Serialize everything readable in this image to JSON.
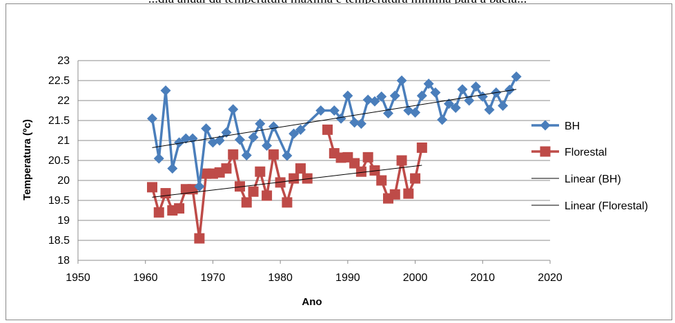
{
  "caption": "...dia anual da temperatura máxima e temperatura mínima para a bacia...",
  "chart_data": {
    "type": "line",
    "xlabel": "Ano",
    "ylabel": "Temperatura (ºc)",
    "xlim": [
      1950,
      2020
    ],
    "ylim": [
      18,
      23
    ],
    "xticks": [
      1950,
      1960,
      1970,
      1980,
      1990,
      2000,
      2010,
      2020
    ],
    "yticks": [
      18,
      18.5,
      19,
      19.5,
      20,
      20.5,
      21,
      21.5,
      22,
      22.5,
      23
    ],
    "grid": "horizontal",
    "legend_position": "right",
    "series": [
      {
        "name": "BH",
        "color": "#4a7ebb",
        "marker": "diamond",
        "x": [
          1961,
          1962,
          1963,
          1964,
          1965,
          1966,
          1967,
          1968,
          1969,
          1970,
          1971,
          1972,
          1973,
          1974,
          1975,
          1976,
          1977,
          1978,
          1979,
          1981,
          1982,
          1983,
          1986,
          1988,
          1989,
          1990,
          1991,
          1992,
          1993,
          1994,
          1995,
          1996,
          1997,
          1998,
          1999,
          2000,
          2001,
          2002,
          2003,
          2004,
          2005,
          2006,
          2007,
          2008,
          2009,
          2010,
          2011,
          2012,
          2013,
          2014,
          2015
        ],
        "y": [
          21.55,
          20.55,
          22.25,
          20.3,
          20.95,
          21.05,
          21.05,
          19.85,
          21.3,
          20.95,
          21.0,
          21.2,
          21.78,
          21.02,
          20.63,
          21.08,
          21.42,
          20.87,
          21.35,
          20.62,
          21.17,
          21.27,
          21.75,
          21.75,
          21.55,
          22.12,
          21.45,
          21.42,
          22.02,
          21.98,
          22.1,
          21.68,
          22.12,
          22.5,
          21.75,
          21.7,
          22.12,
          22.42,
          22.2,
          21.52,
          21.92,
          21.82,
          22.28,
          22.0,
          22.35,
          22.1,
          21.77,
          22.2,
          21.87,
          22.27,
          22.6
        ]
      },
      {
        "name": "Florestal",
        "color": "#be4b48",
        "marker": "square",
        "segments": [
          {
            "x": [
              1961,
              1962,
              1963,
              1964,
              1965,
              1966,
              1967,
              1968,
              1969,
              1970,
              1971,
              1972,
              1973,
              1974,
              1975,
              1976,
              1977,
              1978,
              1979,
              1980,
              1981,
              1982,
              1983,
              1984
            ],
            "y": [
              19.83,
              19.2,
              19.68,
              19.25,
              19.3,
              19.78,
              19.78,
              18.55,
              20.17,
              20.17,
              20.2,
              20.3,
              20.65,
              19.85,
              19.45,
              19.72,
              20.22,
              19.62,
              20.65,
              19.95,
              19.45,
              20.05,
              20.3,
              20.05
            ]
          },
          {
            "x": [
              1987,
              1988,
              1989,
              1990,
              1991,
              1992,
              1993,
              1994,
              1995,
              1996,
              1997,
              1998,
              1999,
              2000,
              2001
            ],
            "y": [
              21.27,
              20.68,
              20.57,
              20.58,
              20.43,
              20.22,
              20.58,
              20.25,
              20.0,
              19.55,
              19.65,
              20.5,
              19.67,
              20.05,
              20.82
            ]
          }
        ]
      },
      {
        "name": "Linear (BH)",
        "color": "#000000",
        "trendline_of": "BH",
        "x": [
          1961,
          2015
        ],
        "y": [
          20.82,
          22.28
        ]
      },
      {
        "name": "Linear (Florestal)",
        "color": "#000000",
        "trendline_of": "Florestal",
        "x": [
          1961,
          2001
        ],
        "y": [
          19.58,
          20.38
        ]
      }
    ]
  }
}
